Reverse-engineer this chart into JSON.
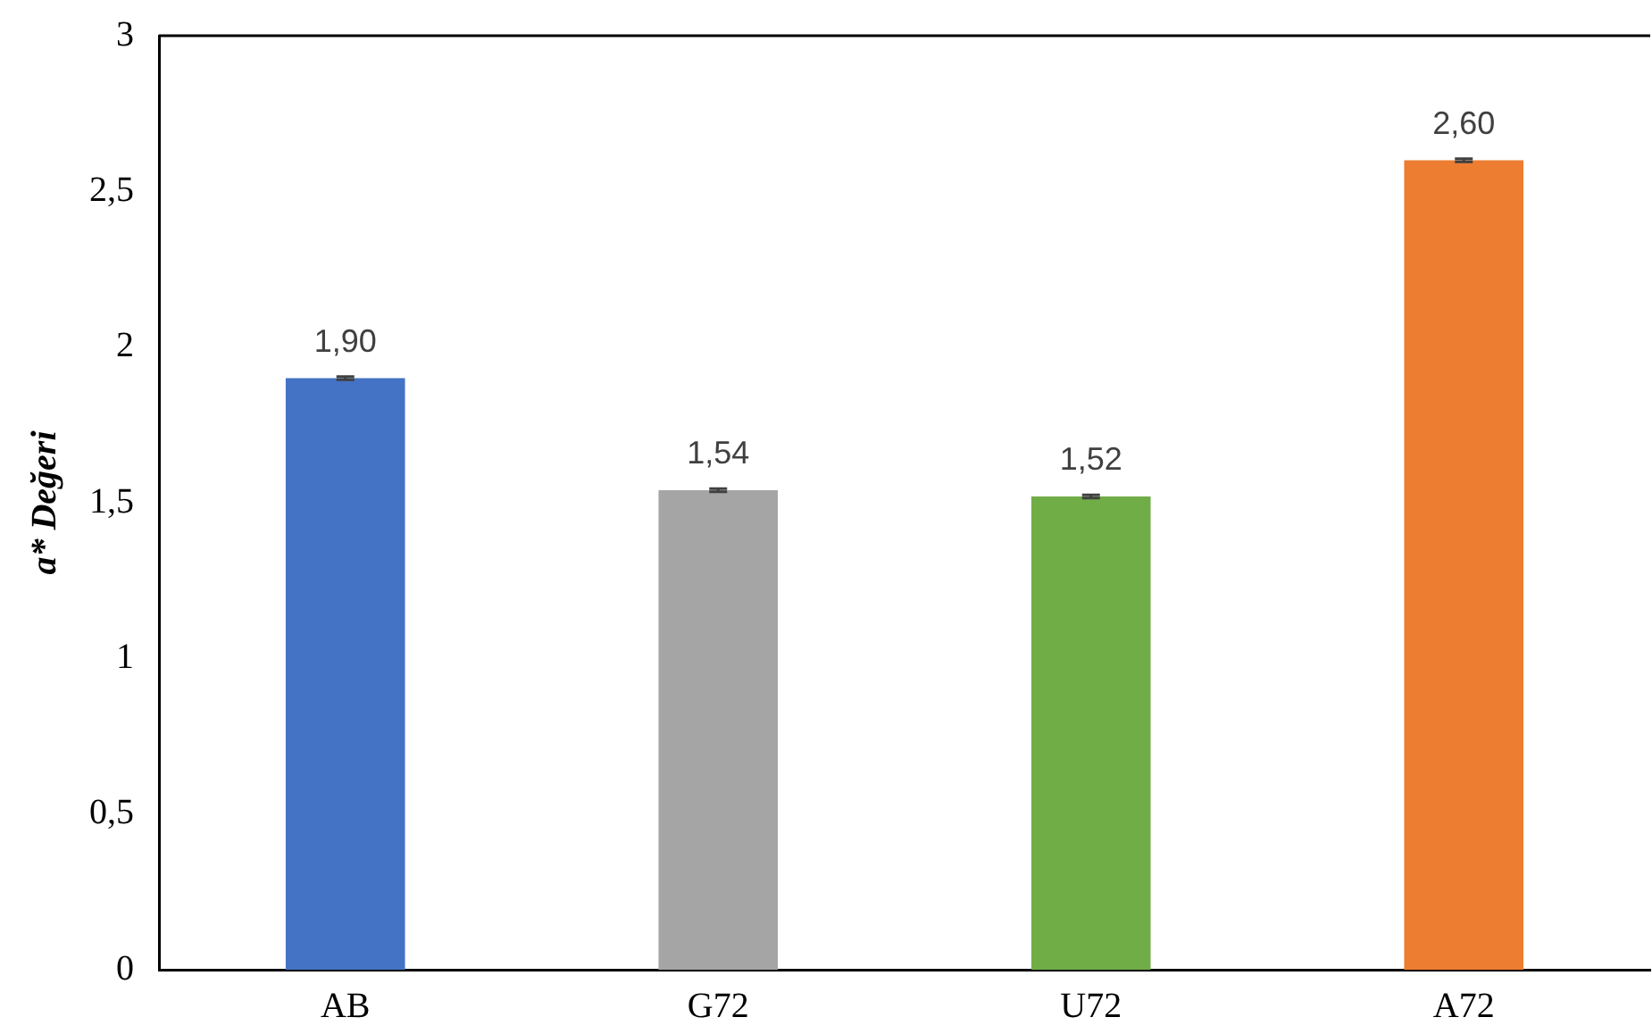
{
  "chart_data": {
    "type": "bar",
    "ylabel": "a* Değeri",
    "categories": [
      "AB",
      "G72",
      "U72",
      "A72"
    ],
    "values": [
      1.9,
      1.54,
      1.52,
      2.6
    ],
    "colors": [
      "#4472c4",
      "#a5a5a5",
      "#70ad47",
      "#ed7d31"
    ],
    "errors": [
      0.005,
      0.005,
      0.005,
      0.005
    ],
    "ylim": [
      0,
      3
    ],
    "yticks": [
      0,
      {
        "value": 0.5,
        "label": "0,5"
      },
      1,
      {
        "value": 1.5,
        "label": "1,5"
      },
      2,
      {
        "value": 2.5,
        "label": "2,5"
      },
      3
    ],
    "value_labels": [
      "1,90",
      "1,54",
      "1,52",
      "2,60"
    ],
    "grid": false,
    "legend": false
  }
}
